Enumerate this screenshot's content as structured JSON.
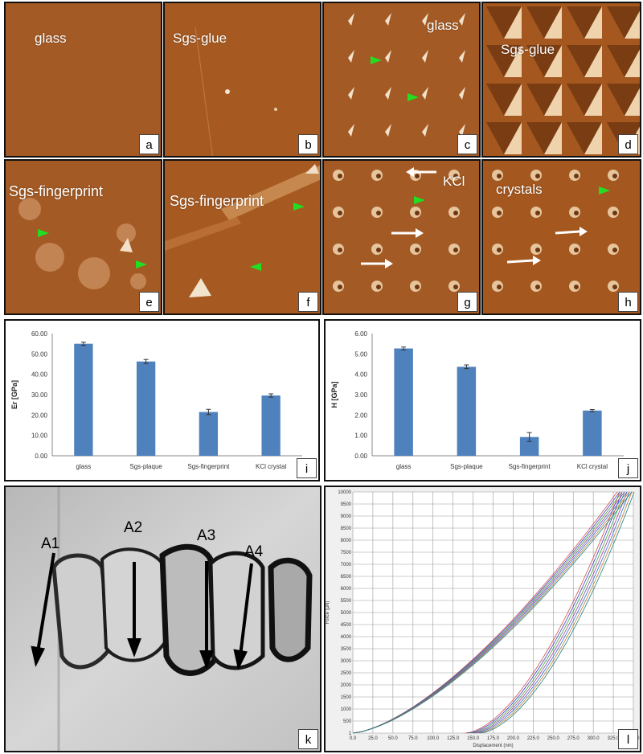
{
  "panels": {
    "a": {
      "letter": "a",
      "label": "glass"
    },
    "b": {
      "letter": "b",
      "label": "Sgs-glue"
    },
    "c": {
      "letter": "c",
      "label": "glass"
    },
    "d": {
      "letter": "d",
      "label": "Sgs-glue"
    },
    "e": {
      "letter": "e",
      "label": "Sgs-fingerprint"
    },
    "f": {
      "letter": "f",
      "label": "Sgs-fingerprint"
    },
    "g": {
      "letter": "g",
      "label": "KCl"
    },
    "h": {
      "letter": "h",
      "label": "crystals"
    },
    "i": {
      "letter": "i"
    },
    "j": {
      "letter": "j"
    },
    "k": {
      "letter": "k",
      "markers": [
        "A1",
        "A2",
        "A3",
        "A4"
      ]
    },
    "l": {
      "letter": "l"
    }
  },
  "colors": {
    "afm": "#a0541f",
    "bar": "#4f81bd",
    "green_marker": "#22dd22"
  },
  "chart_data": [
    {
      "type": "bar",
      "panel": "i",
      "categories": [
        "glass",
        "Sgs-plaque",
        "Sgs-fingerprint",
        "KCl crystal"
      ],
      "values": [
        55.0,
        46.3,
        21.5,
        29.6
      ],
      "errors": [
        0.8,
        1.0,
        1.3,
        0.8
      ],
      "ylabel": "Er [GPa]",
      "ylim": [
        0,
        60
      ],
      "yticks": [
        "0.00",
        "10.00",
        "20.00",
        "30.00",
        "40.00",
        "50.00",
        "60.00"
      ],
      "grid": false
    },
    {
      "type": "bar",
      "panel": "j",
      "categories": [
        "glass",
        "Sgs-plaque",
        "Sgs-fingerprint",
        "KCl crystal"
      ],
      "values": [
        5.27,
        4.37,
        0.92,
        2.22
      ],
      "errors": [
        0.07,
        0.09,
        0.22,
        0.05
      ],
      "ylabel": "H [GPa]",
      "ylim": [
        0,
        6
      ],
      "yticks": [
        "0.00",
        "1.00",
        "2.00",
        "3.00",
        "4.00",
        "5.00",
        "6.00"
      ],
      "grid": false
    },
    {
      "type": "line",
      "panel": "l",
      "xlabel": "Displacement (nm)",
      "ylabel": "Force (µN)",
      "xlim": [
        0,
        348
      ],
      "ylim": [
        0,
        10000
      ],
      "xticks": [
        "0.0",
        "25.0",
        "50.0",
        "75.0",
        "100.0",
        "125.0",
        "150.0",
        "175.0",
        "200.0",
        "225.0",
        "250.0",
        "275.0",
        "300.0",
        "325.0",
        "348.0"
      ],
      "yticks": [
        "1",
        "500",
        "1000",
        "1500",
        "2000",
        "2500",
        "3000",
        "3500",
        "4000",
        "4500",
        "5000",
        "5500",
        "6000",
        "6500",
        "7000",
        "7500",
        "8000",
        "8500",
        "9000",
        "9500",
        "10000"
      ],
      "grid": true,
      "curves": {
        "loading": {
          "x_start": 0,
          "x_end": 337,
          "y_start": 0,
          "y_end": 10000
        },
        "unloading": {
          "x_start": 148,
          "x_end": 340,
          "y_start": 0,
          "y_end": 10000
        }
      }
    }
  ]
}
